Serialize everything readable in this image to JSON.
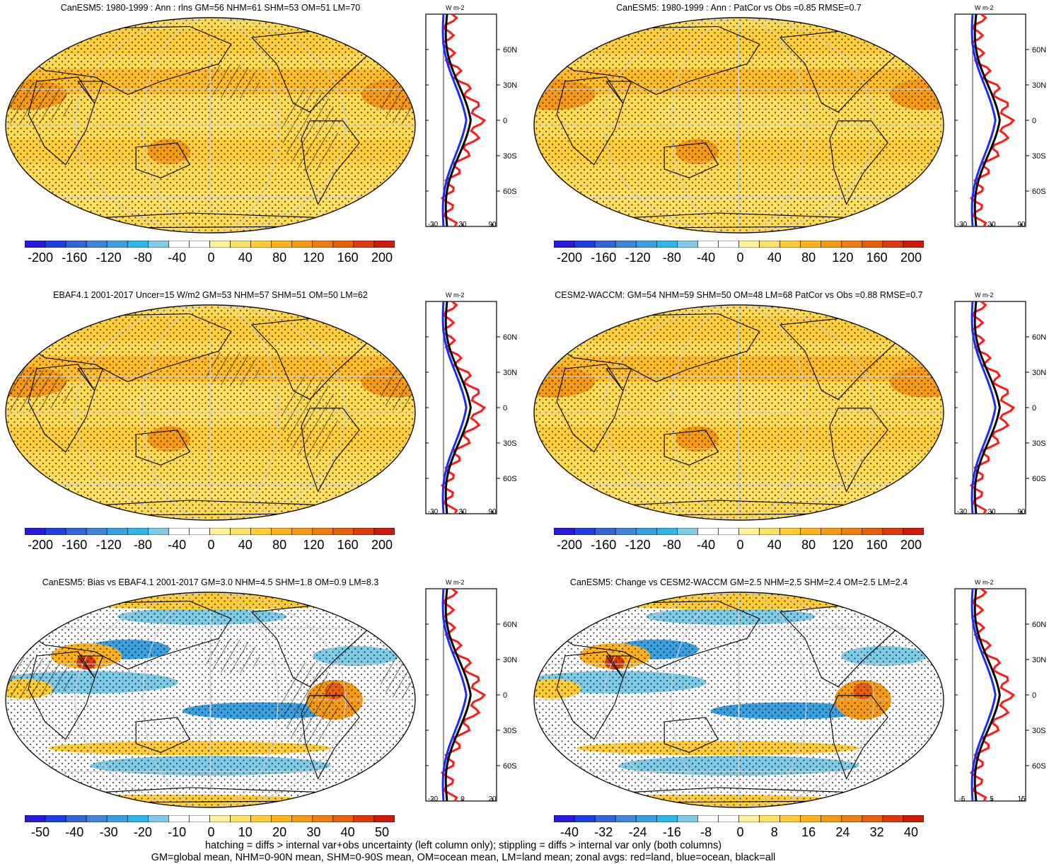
{
  "panels": [
    {
      "title": "CanESM5: 1980-1999 : Ann : rlns GM=56 NHM=61 SHM=53 OM=51 LM=70",
      "scheme": "full",
      "hatch": true,
      "cbar_labels": [
        "-200",
        "-160",
        "-120",
        "-80",
        "-40",
        "0",
        "40",
        "80",
        "120",
        "160",
        "200"
      ],
      "zonal_ticks": [
        "-30",
        "30",
        "90"
      ],
      "zonal_unit": "W m-2",
      "lat_labels": [
        "60N",
        "30N",
        "0",
        "30S",
        "60S"
      ]
    },
    {
      "title": "CanESM5: 1980-1999 : Ann : PatCor vs Obs =0.85 RMSE=0.7",
      "scheme": "full",
      "hatch": false,
      "cbar_labels": [
        "-200",
        "-160",
        "-120",
        "-80",
        "-40",
        "0",
        "40",
        "80",
        "120",
        "160",
        "200"
      ],
      "zonal_ticks": [
        "-30",
        "30",
        "90"
      ],
      "zonal_unit": "W m-2",
      "lat_labels": [
        "60N",
        "30N",
        "0",
        "30S",
        "60S"
      ]
    },
    {
      "title": "EBAF4.1 2001-2017 Uncer=15 W/m2 GM=53 NHM=57 SHM=51 OM=50 LM=62",
      "scheme": "full",
      "hatch": true,
      "cbar_labels": [
        "-200",
        "-160",
        "-120",
        "-80",
        "-40",
        "0",
        "40",
        "80",
        "120",
        "160",
        "200"
      ],
      "zonal_ticks": [
        "-30",
        "30",
        "90"
      ],
      "zonal_unit": "W m-2",
      "lat_labels": [
        "60N",
        "30N",
        "0",
        "30S",
        "60S"
      ]
    },
    {
      "title": "CESM2-WACCM: GM=54 NHM=59 SHM=50 OM=48 LM=68 PatCor vs Obs =0.88 RMSE=0.7",
      "scheme": "full",
      "hatch": false,
      "cbar_labels": [
        "-200",
        "-160",
        "-120",
        "-80",
        "-40",
        "0",
        "40",
        "80",
        "120",
        "160",
        "200"
      ],
      "zonal_ticks": [
        "-30",
        "30",
        "90"
      ],
      "zonal_unit": "W m-2",
      "lat_labels": [
        "60N",
        "30N",
        "0",
        "30S",
        "60S"
      ]
    },
    {
      "title": "CanESM5: Bias vs EBAF4.1 2001-2017 GM=3.0 NHM=4.5 SHM=1.8 OM=0.9 LM=8.3",
      "scheme": "diff",
      "hatch": true,
      "cbar_labels": [
        "-50",
        "-40",
        "-30",
        "-20",
        "-10",
        "0",
        "10",
        "20",
        "30",
        "40",
        "50"
      ],
      "zonal_ticks": [
        "-20",
        "0",
        "20"
      ],
      "zonal_unit": "W m-2",
      "lat_labels": [
        "60N",
        "30N",
        "0",
        "30S",
        "60S"
      ]
    },
    {
      "title": "CanESM5: Change vs CESM2-WACCM GM=2.5 NHM=2.5 SHM=2.4 OM=2.5 LM=2.4",
      "scheme": "diff",
      "hatch": false,
      "cbar_labels": [
        "-40",
        "-32",
        "-24",
        "-16",
        "-8",
        "0",
        "8",
        "16",
        "24",
        "32",
        "40"
      ],
      "zonal_ticks": [
        "-5",
        "5",
        "15"
      ],
      "zonal_unit": "W m-2",
      "lat_labels": [
        "60N",
        "30N",
        "0",
        "30S",
        "60S"
      ]
    }
  ],
  "colorbar_colors": [
    "#2a1ae0",
    "#1f3fe6",
    "#3566d9",
    "#3f84dd",
    "#3aa0e0",
    "#2eb6e8",
    "#7ecbe8",
    "#ffffff",
    "#ffffff",
    "#fff19c",
    "#ffe066",
    "#ffcc33",
    "#ffb21a",
    "#f59a14",
    "#ef7d12",
    "#e85f0c",
    "#e03a0a",
    "#d01a08"
  ],
  "footer": {
    "line1": "hatching = diffs > internal var+obs uncertainty (left column only); stippling = diffs > internal var only (both columns)",
    "line2": "GM=global mean, NHM=0-90N mean, SHM=0-90S mean, OM=ocean mean, LM=land mean; zonal avgs: red=land, blue=ocean, black=all"
  },
  "zonal_series": [
    {
      "name": "land",
      "color": "#ff1a1a"
    },
    {
      "name": "ocean",
      "color": "#1a2aff"
    },
    {
      "name": "all",
      "color": "#000000"
    }
  ]
}
